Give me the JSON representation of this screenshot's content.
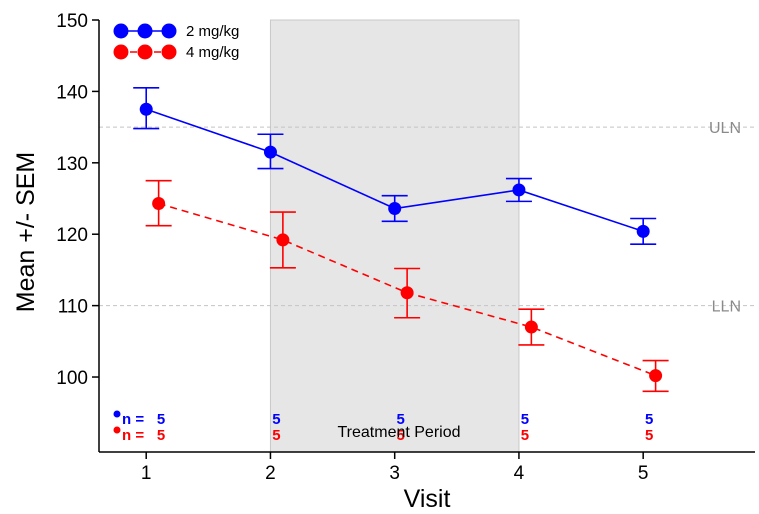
{
  "chart_data": {
    "type": "line",
    "xlabel": "Visit",
    "ylabel": "Mean +/- SEM",
    "xlim": [
      0.62,
      5.9
    ],
    "ylim": [
      89.5,
      150
    ],
    "x_ticks": [
      "1",
      "2",
      "3",
      "4",
      "5"
    ],
    "y_ticks": [
      "100",
      "110",
      "120",
      "130",
      "140",
      "150"
    ],
    "grid": false,
    "legend_position": "top-left",
    "shaded_region": {
      "x_start": 2,
      "x_end": 4,
      "label": "Treatment Period",
      "color": "#e6e6e6"
    },
    "reference_lines": [
      {
        "label": "ULN",
        "y": 135
      },
      {
        "label": "LLN",
        "y": 110
      }
    ],
    "series": [
      {
        "name": "2 mg/kg",
        "color": "#0000ff",
        "line_style": "solid",
        "x": [
          1,
          2,
          3,
          4,
          5
        ],
        "mean": [
          137.5,
          131.5,
          123.6,
          126.2,
          120.4
        ],
        "lower": [
          134.8,
          129.2,
          121.8,
          124.6,
          118.6
        ],
        "upper": [
          140.5,
          134.0,
          125.4,
          127.8,
          122.2
        ],
        "n_prefix": "n = ",
        "n": [
          "5",
          "5",
          "5",
          "5",
          "5"
        ]
      },
      {
        "name": "4 mg/kg",
        "color": "#ff0000",
        "line_style": "dashed",
        "x": [
          1.1,
          2.1,
          3.1,
          4.1,
          5.1
        ],
        "mean": [
          124.3,
          119.2,
          111.8,
          107.0,
          100.2
        ],
        "lower": [
          121.2,
          115.3,
          108.3,
          104.5,
          98.0
        ],
        "upper": [
          127.5,
          123.1,
          115.2,
          109.5,
          102.3
        ],
        "n_prefix": "n = ",
        "n": [
          "5",
          "5",
          "5",
          "5",
          "5"
        ]
      }
    ]
  }
}
